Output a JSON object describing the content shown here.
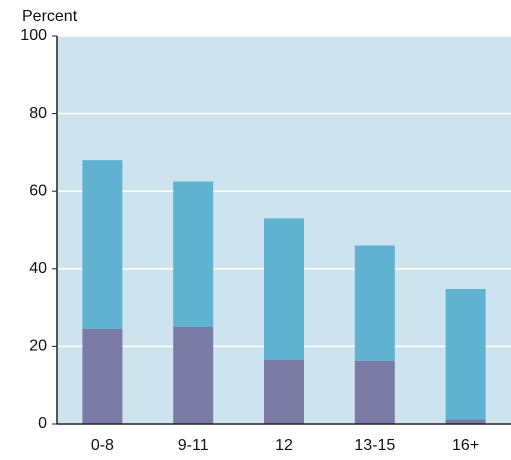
{
  "chart_data": {
    "type": "stacked_bar",
    "y_label": "Percent",
    "categories": [
      "0-8",
      "9-11",
      "12",
      "13-15",
      "16+"
    ],
    "series": [
      {
        "color": "#7b7ba6",
        "values": [
          24.5,
          25,
          16.5,
          16.3,
          1.2
        ]
      },
      {
        "color": "#5fb2d0",
        "values": [
          43.5,
          37.5,
          36.5,
          29.7,
          33.6
        ]
      }
    ],
    "ylim": [
      0,
      100
    ],
    "yticks": [
      0,
      20,
      40,
      60,
      80,
      100
    ],
    "grid": true,
    "background": "#cde4ee"
  }
}
